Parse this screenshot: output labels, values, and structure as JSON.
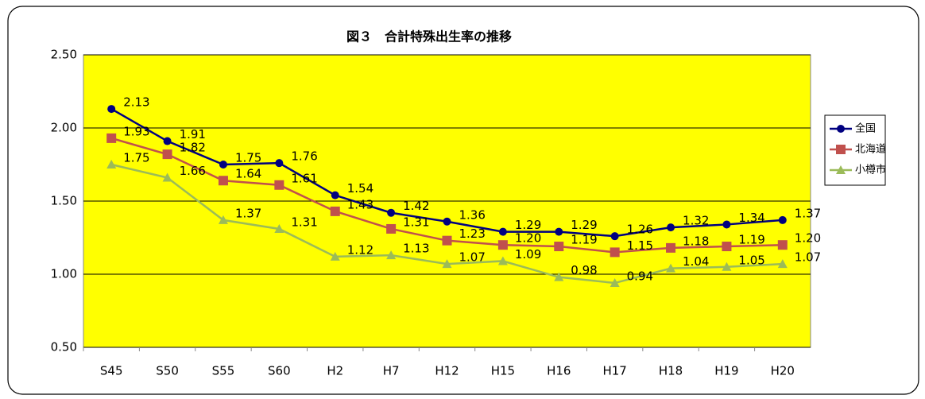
{
  "chart_data": {
    "type": "line",
    "title": "図３　合計特殊出生率の推移",
    "categories": [
      "S45",
      "S50",
      "S55",
      "S60",
      "H2",
      "H7",
      "H12",
      "H15",
      "H16",
      "H17",
      "H18",
      "H19",
      "H20"
    ],
    "series": [
      {
        "name": "全国",
        "color": "#000080",
        "marker": "circle",
        "values": [
          2.13,
          1.91,
          1.75,
          1.76,
          1.54,
          1.42,
          1.36,
          1.29,
          1.29,
          1.26,
          1.32,
          1.34,
          1.37
        ],
        "value_labels": [
          "2.13",
          "1.91",
          "1.75",
          "1.76",
          "1.54",
          "1.42",
          "1.36",
          "1.29",
          "1.29",
          "1.26",
          "1.32",
          "1.34",
          "1.37"
        ]
      },
      {
        "name": "北海道",
        "color": "#c0504d",
        "marker": "square",
        "values": [
          1.93,
          1.82,
          1.64,
          1.61,
          1.43,
          1.31,
          1.23,
          1.2,
          1.19,
          1.15,
          1.18,
          1.19,
          1.2
        ],
        "value_labels": [
          "1.93",
          "1.82",
          "1.64",
          "1.61",
          "1.43",
          "1.31",
          "1.23",
          "1.20",
          "1.19",
          "1.15",
          "1.18",
          "1.19",
          "1.20"
        ]
      },
      {
        "name": "小樽市",
        "color": "#9bbb59",
        "marker": "triangle",
        "values": [
          1.75,
          1.66,
          1.37,
          1.31,
          1.12,
          1.13,
          1.07,
          1.09,
          0.98,
          0.94,
          1.04,
          1.05,
          1.07
        ],
        "value_labels": [
          "1.75",
          "1.66",
          "1.37",
          "1.31",
          "1.12",
          "1.13",
          "1.07",
          "1.09",
          "0.98",
          "0.94",
          "1.04",
          "1.05",
          "1.07"
        ]
      }
    ],
    "ylim": [
      0.5,
      2.5
    ],
    "yticks": [
      {
        "value": 0.5,
        "label": "0.50"
      },
      {
        "value": 1,
        "label": "1.00"
      },
      {
        "value": 1.5,
        "label": "1.50"
      },
      {
        "value": 2,
        "label": "2.00"
      },
      {
        "value": 2.5,
        "label": "2.50"
      }
    ],
    "grid": true,
    "plot_background": "#ffff00",
    "legend": "right"
  }
}
